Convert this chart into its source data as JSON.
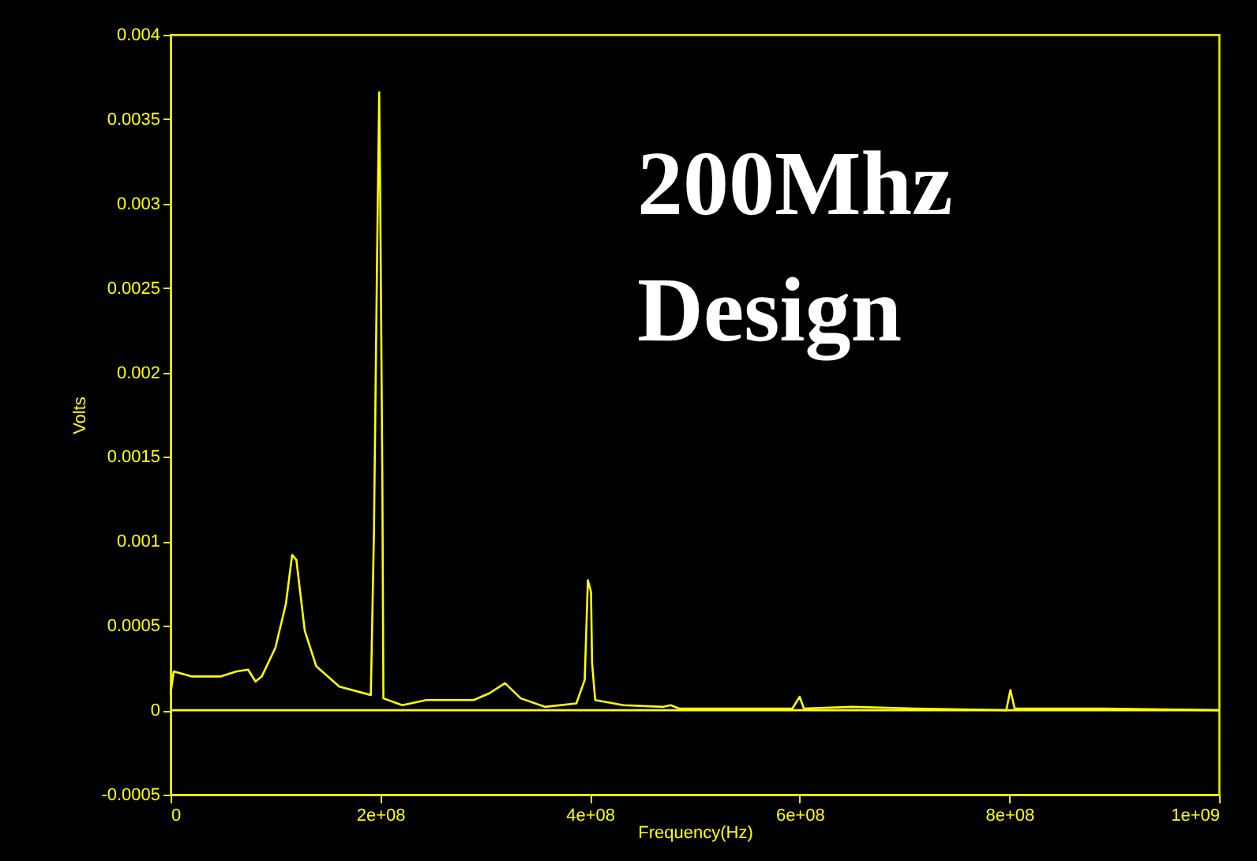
{
  "chart_data": {
    "type": "line",
    "xlabel": "Frequency(Hz)",
    "ylabel": "Volts",
    "annotations": [
      "200Mhz\nDesign"
    ],
    "series": [
      {
        "color": "#ffff00",
        "x": [
          0,
          3000000.0,
          20000000.0,
          48000000.0,
          63000000.0,
          74000000.0,
          81000000.0,
          87000000.0,
          100000000.0,
          110000000.0,
          116000000.0,
          120000000.0,
          128000000.0,
          139000000.0,
          161000000.0,
          191000000.0,
          194000000.0,
          197000000.0,
          199000000.0,
          200000000.0,
          202000000.0,
          203000000.0,
          221000000.0,
          244000000.0,
          289000000.0,
          304000000.0,
          319000000.0,
          334000000.0,
          357000000.0,
          387000000.0,
          395000000.0,
          398000000.0,
          401000000.0,
          402000000.0,
          405000000.0,
          432000000.0,
          470000000.0,
          477000000.0,
          485000000.0,
          560000000.0,
          593000000.0,
          600000000.0,
          604000000.0,
          650000000.0,
          710000000.0,
          797000000.0,
          801000000.0,
          805000000.0,
          890000000.0,
          1000000000.0
        ],
        "values": [
          0.0001,
          0.00023,
          0.0002,
          0.0002,
          0.00023,
          0.00024,
          0.00017,
          0.0002,
          0.00037,
          0.00063,
          0.00092,
          0.00089,
          0.00047,
          0.00026,
          0.00014,
          9e-05,
          0.00106,
          0.0027,
          0.00366,
          0.003,
          0.00136,
          7e-05,
          3e-05,
          6e-05,
          6e-05,
          0.0001,
          0.00016,
          7e-05,
          2e-05,
          4e-05,
          0.00018,
          0.00077,
          0.0007,
          0.00028,
          6e-05,
          3e-05,
          2e-05,
          3e-05,
          1e-05,
          1e-05,
          1e-05,
          8e-05,
          1e-05,
          2e-05,
          1e-05,
          0.0,
          0.00012,
          1e-05,
          1e-05,
          0.0
        ]
      }
    ],
    "xlim": [
      0,
      1000000000.0
    ],
    "xticks": [
      0,
      {
        "value": 200000000.0,
        "label": "2e+08"
      },
      {
        "value": 400000000.0,
        "label": "4e+08"
      },
      {
        "value": 600000000.0,
        "label": "6e+08"
      },
      {
        "value": 800000000.0,
        "label": "8e+08"
      },
      {
        "value": 1000000000.0,
        "label": "1e+09"
      }
    ],
    "ylim": [
      -0.0005,
      0.004
    ],
    "yticks": [
      -0.0005,
      0,
      0.0005,
      0.001,
      0.0015,
      0.002,
      0.0025,
      0.003,
      0.0035,
      0.004
    ],
    "ref_lines": [
      {
        "axis": "y",
        "value": 0,
        "color": "#ffff00"
      }
    ],
    "grid": false,
    "marker": "none",
    "line_style": "solid"
  }
}
